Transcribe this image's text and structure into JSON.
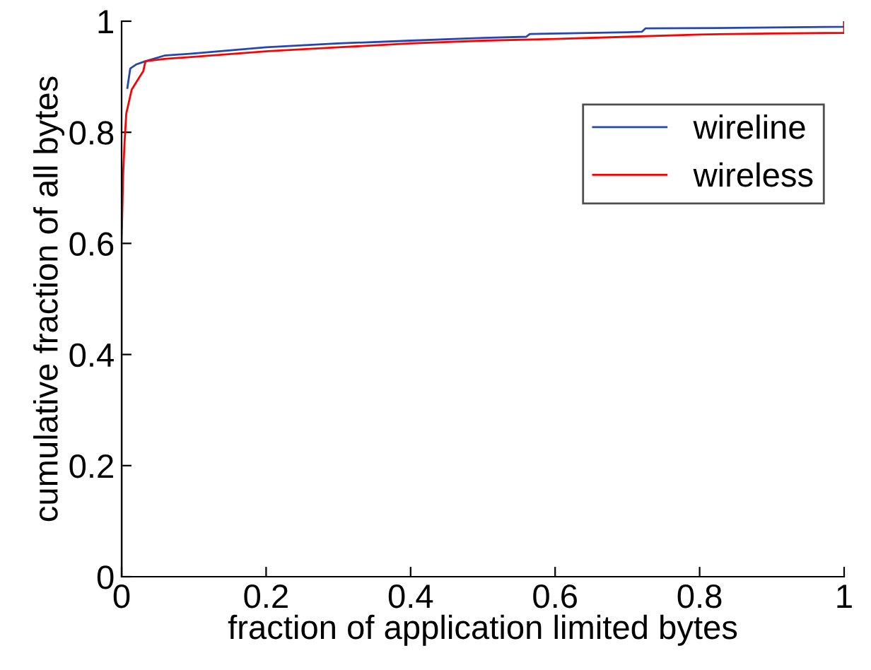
{
  "chart_data": {
    "type": "line",
    "xlabel": "fraction of application limited bytes",
    "ylabel": "cumulative fraction of all bytes",
    "xlim": [
      0,
      1
    ],
    "ylim": [
      0,
      1
    ],
    "xticks": [
      0,
      0.2,
      0.4,
      0.6,
      0.8,
      1
    ],
    "yticks": [
      0,
      0.2,
      0.4,
      0.6,
      0.8,
      1
    ],
    "grid": false,
    "legend": "top right",
    "series": [
      {
        "name": "wireline",
        "color": "#2646b0",
        "x": [
          0.008,
          0.012,
          0.02,
          0.033,
          0.059,
          0.1,
          0.2,
          0.3,
          0.4,
          0.5,
          0.56,
          0.565,
          0.7,
          0.72,
          0.725,
          0.85,
          1,
          1
        ],
        "values": [
          0.88,
          0.915,
          0.922,
          0.928,
          0.938,
          0.942,
          0.953,
          0.96,
          0.965,
          0.97,
          0.972,
          0.977,
          0.98,
          0.981,
          0.987,
          0.988,
          0.99,
          1
        ]
      },
      {
        "name": "wireless",
        "color": "#ff0000",
        "x": [
          0,
          0,
          0.002,
          0.004,
          0.0065,
          0.014,
          0.024,
          0.03,
          0.033,
          0.059,
          0.1,
          0.203,
          0.3,
          0.4,
          0.5,
          0.6,
          0.7,
          0.8,
          0.9,
          1,
          1
        ],
        "values": [
          0,
          0.6,
          0.72,
          0.78,
          0.834,
          0.877,
          0.898,
          0.91,
          0.928,
          0.932,
          0.936,
          0.946,
          0.953,
          0.96,
          0.965,
          0.968,
          0.972,
          0.976,
          0.978,
          0.979,
          1
        ]
      }
    ]
  }
}
